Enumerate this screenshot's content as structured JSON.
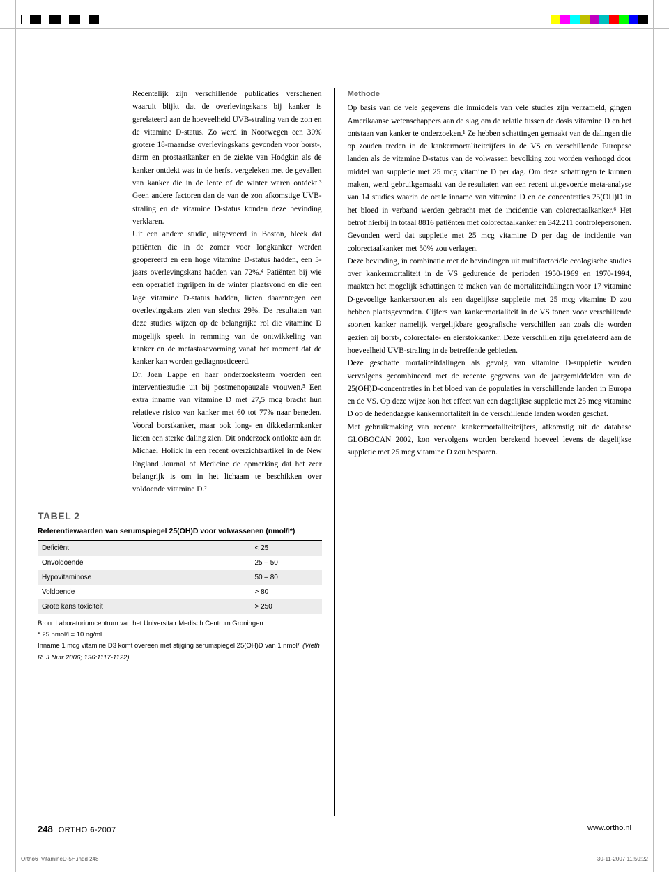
{
  "registration": {
    "left_colors": [
      "#ffffff",
      "#000000",
      "#ffffff",
      "#000000",
      "#ffffff",
      "#000000",
      "#ffffff",
      "#000000"
    ],
    "right_colors": [
      "#ffff00",
      "#ff00ff",
      "#00ffff",
      "#bfbf00",
      "#bf00bf",
      "#00bfbf",
      "#ff0000",
      "#00ff00",
      "#0000ff",
      "#000000"
    ]
  },
  "col_left": "Recentelijk zijn verschillende publicaties verschenen waaruit blijkt dat de overlevingskans bij kanker is gerelateerd aan de hoeveelheid UVB-straling van de zon en de vitamine D-status. Zo werd in Noorwegen een 30% grotere 18-maandse overlevingskans gevonden voor borst-, darm en prostaatkanker en de ziekte van Hodgkin als de kanker ontdekt was in de herfst vergeleken met de gevallen van kanker die in de lente of de winter waren ontdekt.³ Geen andere factoren dan de van de zon afkomstige UVB-straling en de vitamine D-status konden deze bevinding verklaren.\nUit een andere studie, uitgevoerd in Boston, bleek dat patiënten die in de zomer voor longkanker werden geopereerd en een hoge vitamine D-status hadden, een 5-jaars overlevingskans hadden van 72%.⁴ Patiënten bij wie een operatief ingrijpen in de winter plaatsvond en die een lage vitamine D-status hadden, lieten daarentegen een overlevingskans zien van slechts 29%. De resultaten van deze studies wijzen op de belangrijke rol die vitamine D mogelijk speelt in remming van de ontwikkeling van kanker en de metastasevorming vanaf het moment dat de kanker kan worden gediagnosticeerd.\nDr. Joan Lappe en haar onderzoeksteam voerden een interventiestudie uit bij postmenopauzale vrouwen.⁵ Een extra inname van vitamine D met 27,5 mcg bracht hun relatieve risico van kanker met 60 tot 77% naar beneden. Vooral borstkanker, maar ook long- en dikkedarmkanker lieten een sterke daling zien. Dit onderzoek ontlokte aan dr. Michael Holick in een recent overzichtsartikel in de New England Journal of Medicine de opmerking dat het zeer belangrijk is om in het lichaam te beschikken over voldoende vitamine D.²",
  "col_right_head": "Methode",
  "col_right": "Op basis van de vele gegevens die inmiddels van vele studies zijn verzameld, gingen Amerikaanse wetenschappers aan de slag om de relatie tussen de dosis vitamine D en het ontstaan van kanker te onderzoeken.¹ Ze hebben schattingen gemaakt van de dalingen die op zouden treden in de kankermortaliteitcijfers in de VS en verschillende Europese landen als de vitamine D-status van de volwassen bevolking zou worden verhoogd door middel van suppletie met 25 mcg vitamine D per dag. Om deze schattingen te kunnen maken, werd gebruikgemaakt van de resultaten van een recent uitgevoerde meta-analyse van 14 studies waarin de orale inname van vitamine D en de concentraties 25(OH)D in het bloed in verband werden gebracht met de incidentie van colorectaalkanker.⁶ Het betrof hierbij in totaal 8816 patiënten met colorectaalkanker en 342.211 controlepersonen. Gevonden werd dat suppletie met 25 mcg vitamine D per dag de incidentie van colorectaalkanker met 50% zou verlagen.\nDeze bevinding, in combinatie met de bevindingen uit multifactoriële ecologische studies over kankermortaliteit in de VS gedurende de perioden 1950-1969 en 1970-1994, maakten het mogelijk schattingen te maken van de mortaliteitdalingen voor 17 vitamine D-gevoelige kankersoorten als een dagelijkse suppletie met 25 mcg vitamine D zou hebben plaatsgevonden. Cijfers van kankermortaliteit in de VS tonen voor verschillende soorten kanker namelijk vergelijkbare geografische verschillen aan zoals die worden gezien bij borst-, colorectale- en eierstokkanker. Deze verschillen zijn gerelateerd aan de hoeveelheid UVB-straling in de betreffende gebieden.\nDeze geschatte mortaliteitdalingen als gevolg van vitamine D-suppletie werden vervolgens gecombineerd met de recente gegevens van de jaargemiddelden van de 25(OH)D-concentraties in het bloed van de populaties in verschillende landen in Europa en de VS. Op deze wijze kon het effect van een dagelijkse suppletie met 25 mcg vitamine D op de hedendaagse kankermortaliteit in de verschillende landen worden geschat.\nMet gebruikmaking van recente kankermortaliteitcijfers, afkomstig uit de database GLOBOCAN 2002, kon vervolgens worden berekend hoeveel levens de dagelijkse suppletie met 25 mcg vitamine D zou besparen.",
  "table": {
    "title": "TABEL 2",
    "subtitle": "Referentiewaarden van serumspiegel 25(OH)D voor volwassenen (nmol/l*)",
    "rows": [
      {
        "label": "Deficiënt",
        "value": "< 25",
        "shaded": true
      },
      {
        "label": "Onvoldoende",
        "value": "25 – 50",
        "shaded": false
      },
      {
        "label": "Hypovitaminose",
        "value": "50 – 80",
        "shaded": true
      },
      {
        "label": "Voldoende",
        "value": "> 80",
        "shaded": false
      },
      {
        "label": "Grote kans toxiciteit",
        "value": "> 250",
        "shaded": true
      }
    ],
    "notes": [
      "Bron: Laboratoriumcentrum van het Universitair Medisch Centrum Groningen",
      "* 25 nmol/l = 10 ng/ml",
      "Inname 1 mcg vitamine D3 komt overeen met stijging serumspiegel 25(OH)D van 1 nmol/l (Vieth R. J Nutr 2006; 136:1117-1122)"
    ]
  },
  "footer": {
    "page": "248",
    "pub_a": "ORTHO",
    "pub_b": " 6",
    "pub_c": "-2007",
    "url": "www.ortho.nl"
  },
  "slug": {
    "file": "Ortho6_VitamineD-5H.indd   248",
    "time": "30-11-2007   11:50:22"
  }
}
